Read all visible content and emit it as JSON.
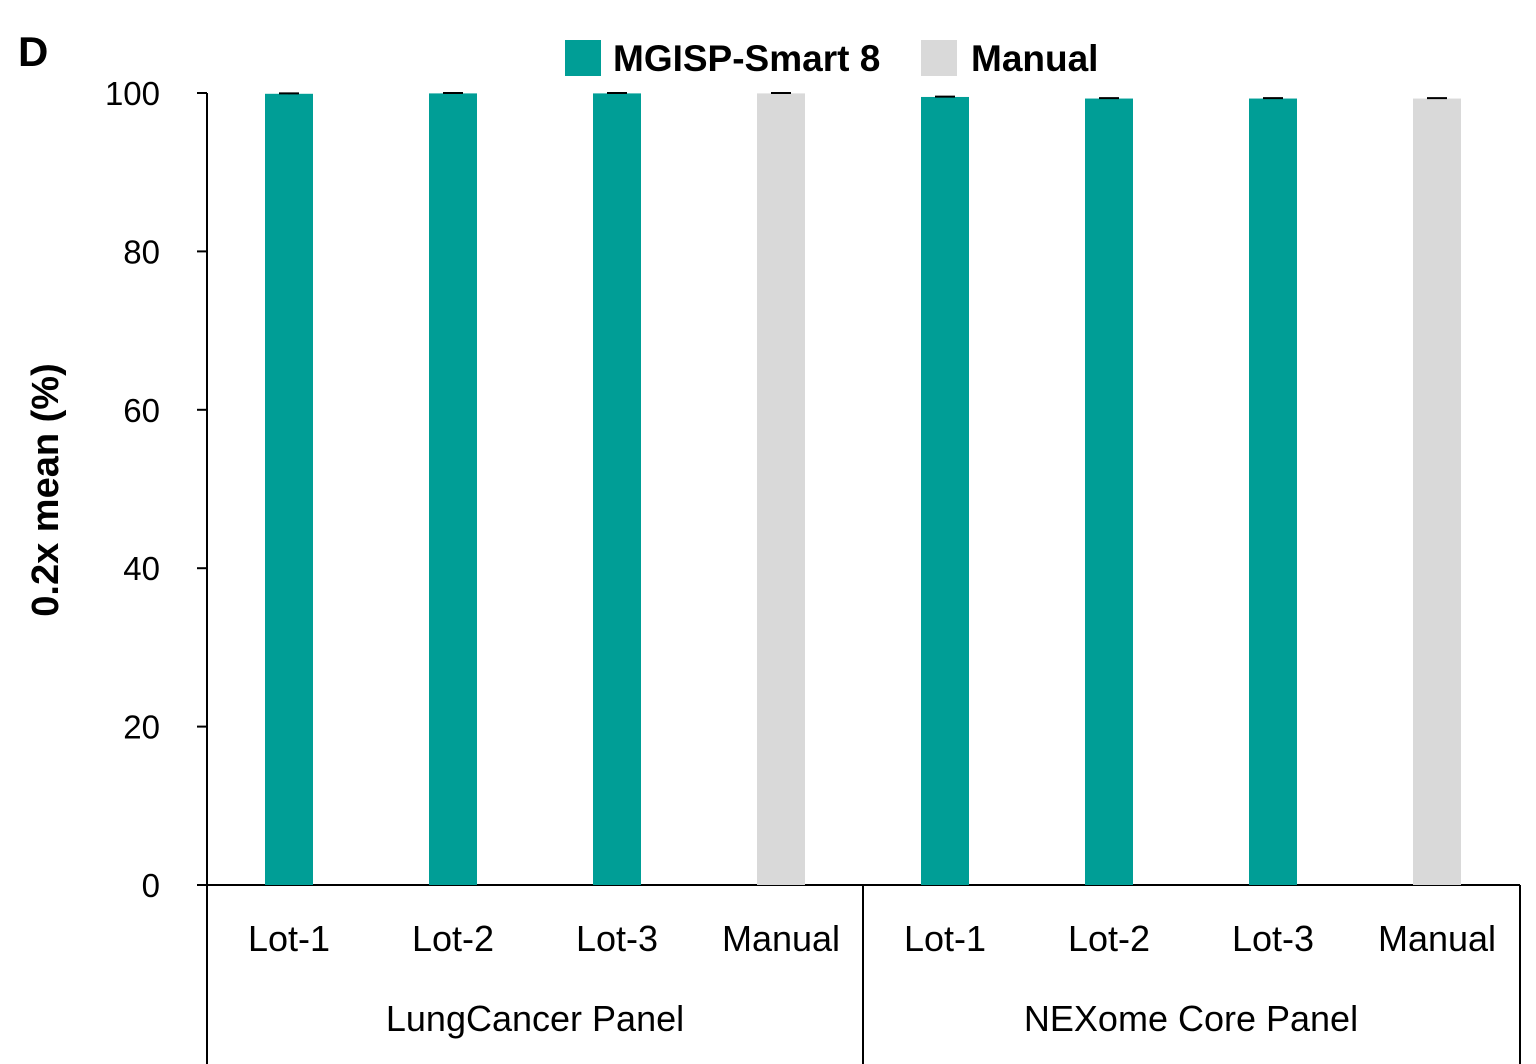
{
  "panel_label": "D",
  "colors": {
    "smart8": "#009e96",
    "manual": "#d9d9d9",
    "axis": "#000000"
  },
  "chart_data": {
    "type": "bar",
    "title": "",
    "xlabel": "",
    "ylabel": "0.2x mean (%)",
    "ylim": [
      0,
      100
    ],
    "yticks": [
      0,
      20,
      40,
      60,
      80,
      100
    ],
    "legend_position": "top-center",
    "legend": [
      {
        "name": "MGISP-Smart 8",
        "color_key": "smart8"
      },
      {
        "name": "Manual",
        "color_key": "manual"
      }
    ],
    "groups": [
      {
        "label": "LungCancer Panel",
        "bars": [
          {
            "category": "Lot-1",
            "series": "MGISP-Smart 8",
            "value": 99.9,
            "error": 0.05
          },
          {
            "category": "Lot-2",
            "series": "MGISP-Smart 8",
            "value": 99.95,
            "error": 0.05
          },
          {
            "category": "Lot-3",
            "series": "MGISP-Smart 8",
            "value": 99.95,
            "error": 0.05
          },
          {
            "category": "Manual",
            "series": "Manual",
            "value": 99.95,
            "error": 0.05
          }
        ]
      },
      {
        "label": "NEXome Core Panel",
        "bars": [
          {
            "category": "Lot-1",
            "series": "MGISP-Smart 8",
            "value": 99.5,
            "error": 0.05
          },
          {
            "category": "Lot-2",
            "series": "MGISP-Smart 8",
            "value": 99.3,
            "error": 0.05
          },
          {
            "category": "Lot-3",
            "series": "MGISP-Smart 8",
            "value": 99.3,
            "error": 0.05
          },
          {
            "category": "Manual",
            "series": "Manual",
            "value": 99.3,
            "error": 0.05
          }
        ]
      }
    ]
  }
}
